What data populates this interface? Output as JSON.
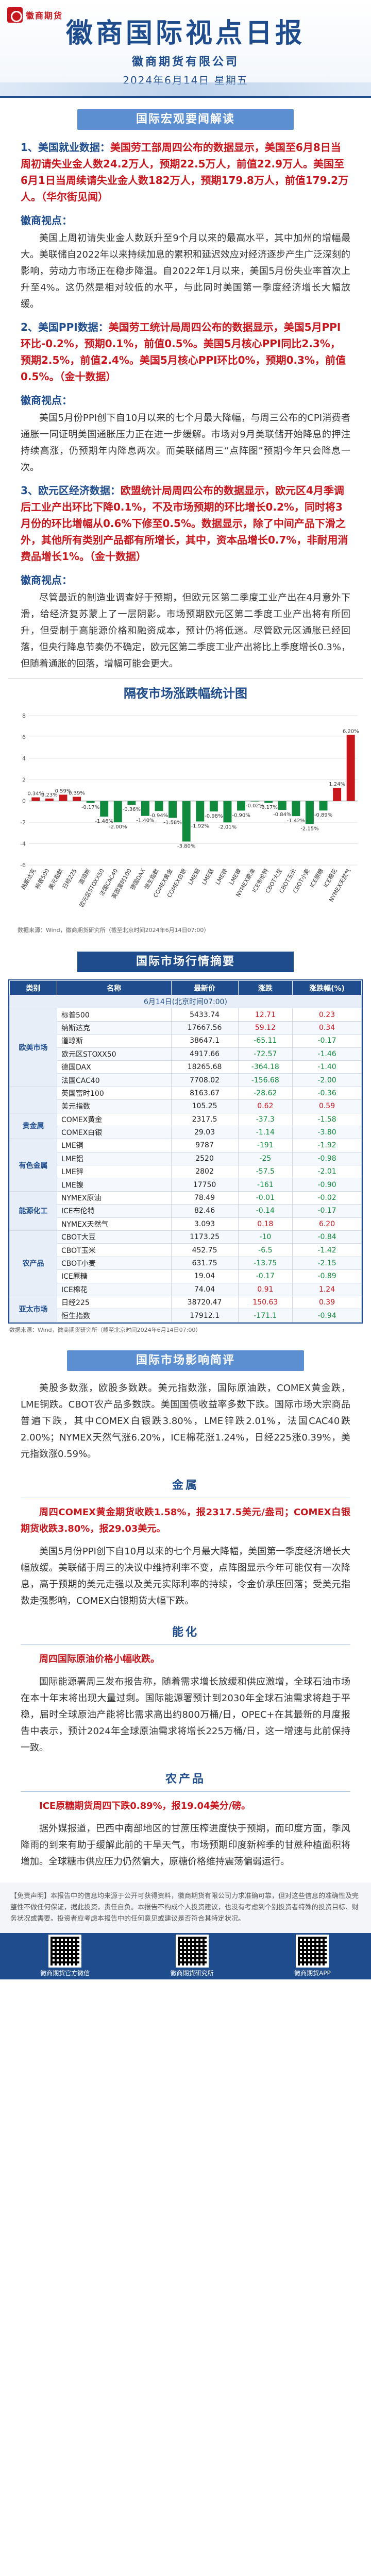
{
  "header": {
    "logo_text": "徽商期货",
    "title": "徽商国际视点日报",
    "company": "徽商期货有限公司",
    "date": "2024年6月14日 星期五"
  },
  "sections": {
    "macro_title": "国际宏观要闻解读",
    "chart_title": "隔夜市场涨跌幅统计图",
    "table_title": "国际市场行情摘要",
    "effects_title": "国际市场影响简评"
  },
  "macro": [
    {
      "lead": "1、美国就业数据：",
      "headline": "美国劳工部周四公布的数据显示，美国至6月8日当周初请失业金人数24.2万人，预期22.5万人，前值22.9万人。美国至6月1日当周续请失业金人数182万人，预期179.8万人，前值179.2万人。（华尔街见闻）",
      "comment_label": "徽商视点：",
      "comment": "美国上周初请失业金人数跃升至9个月以来的最高水平，其中加州的增幅最大。美联储自2022年以来持续加息的累积和延迟效应对经济逐步产生广泛深刻的影响，劳动力市场正在稳步降温。自2022年1月以来，美国5月份失业率首次上升至4%。这仍然是相对较低的水平，与此同时美国第一季度经济增长大幅放缓。"
    },
    {
      "lead": "2、美国PPI数据：",
      "headline": "美国劳工统计局周四公布的数据显示，美国5月PPI环比-0.2%，预期0.1%，前值0.5%。美国5月核心PPI同比2.3%，预期2.5%，前值2.4%。美国5月核心PPI环比0%，预期0.3%，前值0.5%。（金十数据）",
      "comment_label": "徽商视点：",
      "comment": "美国5月份PPI创下自10月以来的七个月最大降幅，与周三公布的CPI消费者通胀一同证明美国通胀压力正在进一步缓解。市场对9月美联储开始降息的押注持续高涨，仍预期年内降息两次。而美联储周三“点阵图”预期今年只会降息一次。"
    },
    {
      "lead": "3、欧元区经济数据：",
      "headline": "欧盟统计局周四公布的数据显示，欧元区4月季调后工业产出环比下降0.1%，不及市场预期的环比增长0.2%，同时将3月份的环比增幅从0.6%下修至0.5%。数据显示，除了中间产品下滑之外，其他所有类别产品都有所增长，其中，资本品增长0.7%，非耐用消费品增长1%。（金十数据）",
      "comment_label": "徽商视点：",
      "comment": "尽管最近的制造业调查好于预期，但欧元区第二季度工业产出在4月意外下滑，给经济复苏蒙上了一层阴影。市场预期欧元区第二季度工业产出将有所回升，但受制于高能源价格和融资成本，预计仍将低迷。尽管欧元区通胀已经回落，但央行降息节奏仍不确定，欧元区第二季度工业产出将比上季度增长0.3%，但随着通胀的回落，增幅可能会更大。"
    }
  ],
  "chart_data": {
    "type": "bar",
    "title": "隔夜市场涨跌幅统计图",
    "source": "数据来源：Wind，徽商期货研究所（截至北京时间2024年6月14日07:00）",
    "categories": [
      "纳斯达克",
      "标普500",
      "美元指数",
      "日经225",
      "道琼斯",
      "欧元区STOXX50",
      "法国CAC40",
      "英国富时100",
      "德国DAX",
      "恒生指数",
      "COMEX黄金",
      "COMEX白银",
      "LME铜",
      "LME铝",
      "LME锌",
      "LME镍",
      "NYMEX原油",
      "ICE布伦特",
      "CBOT大豆",
      "CBOT玉米",
      "CBOT小麦",
      "ICE原糖",
      "ICE棉花",
      "NYMEX天然气"
    ],
    "values": [
      0.34,
      0.23,
      0.59,
      0.39,
      -0.17,
      -1.46,
      -2.0,
      -0.36,
      -1.4,
      -0.94,
      -1.58,
      -3.8,
      -1.92,
      -0.98,
      -2.01,
      -0.9,
      -0.02,
      -0.17,
      -0.84,
      -1.42,
      -2.15,
      -0.89,
      1.24,
      6.2
    ],
    "ylim": [
      -6,
      8
    ]
  },
  "table": {
    "headers": [
      "类别",
      "名称",
      "最新价",
      "涨跌",
      "涨跌幅(%)"
    ],
    "timestamp": "6月14日(北京时间07:00)",
    "groups": [
      {
        "category": "欧美市场",
        "rows": [
          [
            "标普500",
            "5433.74",
            "12.71",
            "0.23"
          ],
          [
            "纳斯达克",
            "17667.56",
            "59.12",
            "0.34"
          ],
          [
            "道琼斯",
            "38647.1",
            "-65.11",
            "-0.17"
          ],
          [
            "欧元区STOXX50",
            "4917.66",
            "-72.57",
            "-1.46"
          ],
          [
            "德国DAX",
            "18265.68",
            "-364.18",
            "-1.40"
          ],
          [
            "法国CAC40",
            "7708.02",
            "-156.68",
            "-2.00"
          ]
        ]
      },
      {
        "category": "",
        "rows": [
          [
            "英国富时100",
            "8163.67",
            "-28.62",
            "-0.36"
          ],
          [
            "美元指数",
            "105.25",
            "0.62",
            "0.59"
          ]
        ]
      },
      {
        "category": "贵金属",
        "rows": [
          [
            "COMEX黄金",
            "2317.5",
            "-37.3",
            "-1.58"
          ],
          [
            "COMEX白银",
            "29.03",
            "-1.14",
            "-3.80"
          ]
        ]
      },
      {
        "category": "有色金属",
        "rows": [
          [
            "LME铜",
            "9787",
            "-191",
            "-1.92"
          ],
          [
            "LME铝",
            "2520",
            "-25",
            "-0.98"
          ],
          [
            "LME锌",
            "2802",
            "-57.5",
            "-2.01"
          ],
          [
            "LME镍",
            "17750",
            "-161",
            "-0.90"
          ]
        ]
      },
      {
        "category": "能源化工",
        "rows": [
          [
            "NYMEX原油",
            "78.49",
            "-0.01",
            "-0.02"
          ],
          [
            "ICE布伦特",
            "82.46",
            "-0.14",
            "-0.17"
          ],
          [
            "NYMEX天然气",
            "3.093",
            "0.18",
            "6.20"
          ]
        ]
      },
      {
        "category": "农产品",
        "rows": [
          [
            "CBOT大豆",
            "1173.25",
            "-10",
            "-0.84"
          ],
          [
            "CBOT玉米",
            "452.75",
            "-6.5",
            "-1.42"
          ],
          [
            "CBOT小麦",
            "631.75",
            "-13.75",
            "-2.15"
          ],
          [
            "ICE原糖",
            "19.04",
            "-0.17",
            "-0.89"
          ],
          [
            "ICE棉花",
            "74.04",
            "0.91",
            "1.24"
          ]
        ]
      },
      {
        "category": "亚太市场",
        "rows": [
          [
            "日经225",
            "38720.47",
            "150.63",
            "0.39"
          ],
          [
            "恒生指数",
            "17912.1",
            "-171.1",
            "-0.94"
          ]
        ]
      }
    ],
    "source": "数据来源：Wind，徽商期货研究所（截至北京时间2024年6月14日07:00）"
  },
  "effects": {
    "overview": "美股多数涨，欧股多数跌。美元指数涨，国际原油跌，COMEX黄金跌，LME铜跌。CBOT农产品多数跌。美国国债收益率多数下跌。国际市场大宗商品普遍下跌，其中COMEX白银跌3.80%，LME锌跌2.01%，法国CAC40跌2.00%；NYMEX天然气涨6.20%，ICE棉花涨1.24%，日经225涨0.39%，美元指数涨0.59%。",
    "gold_title": "金属",
    "gold_headline": "周四COMEX黄金期货收跌1.58%，报2317.5美元/盎司；COMEX白银期货收跌3.80%，报29.03美元。",
    "gold_comment": "美国5月份PPI创下自10月以来的七个月最大降幅，美国第一季度经济增长大幅放缓。美联储于周三的决议中维持利率不变，点阵图显示今年可能仅有一次降息，高于预期的美元走强以及美元实际利率的持续，令金价承压回落；受美元指数走强影响，COMEX白银期货大幅下跌。",
    "energy_title": "能化",
    "energy_headline": "周四国际原油价格小幅收跌。",
    "energy_comment": "国际能源署周三发布报告称，随着需求增长放缓和供应激增，全球石油市场在本十年末将出现大量过剩。国际能源署预计到2030年全球石油需求将趋于平稳，届时全球原油产能将比需求高出约800万桶/日，OPEC+在其最新的月度报告中表示，预计2024年全球原油需求将增长225万桶/日，这一增速与此前保持一致。",
    "agri_title": "农产品",
    "agri_headline": "ICE原糖期货周四下跌0.89%，报19.04美分/磅。",
    "agri_comment": "据外媒报道，巴西中南部地区的甘蔗压榨进度快于预期，而印度方面，季风降雨的到来有助于缓解此前的干旱天气，市场预期印度新榨季的甘蔗种植面积将增加。全球糖市供应压力仍然偏大，原糖价格维持震荡偏弱运行。"
  },
  "footer": {
    "disclaimer": "【免责声明】本报告中的信息均来源于公开可获得资料，徽商期货有限公司力求准确可靠，但对这些信息的准确性及完整性不做任何保证，据此投资，责任自负。本报告不构成个人投资建议，也没有考虑到个别投资者特殊的投资目标、财务状况或需要。投资者应考虑本报告中的任何意见或建议是否符合其特定状况。",
    "qr_labels": [
      "徽商期货官方微信",
      "徽商期货研究所",
      "徽商期货APP"
    ]
  },
  "colors": {
    "brand": "#1e4c8c",
    "accent": "#5b8fd1",
    "up": "#c8161d",
    "down": "#108a3c"
  }
}
